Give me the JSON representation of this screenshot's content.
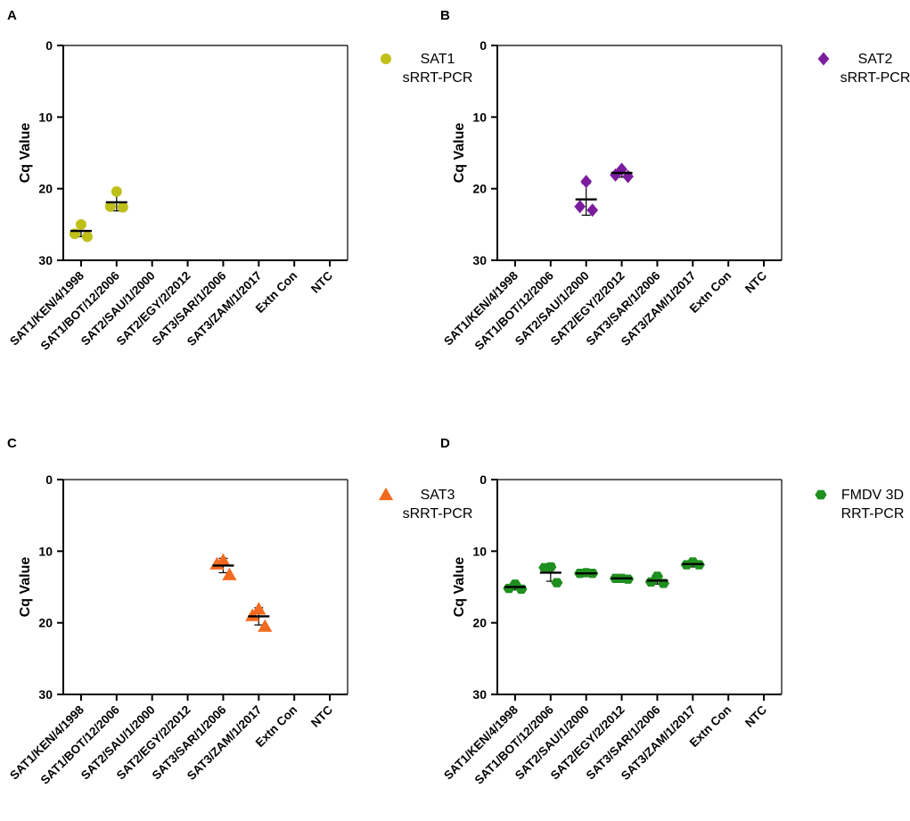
{
  "figure": {
    "ylabel": "Cq Value",
    "categories": [
      "SAT1/KEN/4/1998",
      "SAT1/BOT/12/2006",
      "SAT2/SAU/1/2000",
      "SAT2/EGY/2/2012",
      "SAT3/SAR/1/2006",
      "SAT3/ZAM/1/2017",
      "Extn Con",
      "NTC"
    ]
  },
  "chart_data": [
    {
      "type": "scatter",
      "panel": "A",
      "ylabel": "Cq Value",
      "ylim": [
        30,
        0
      ],
      "yticks": [
        0,
        10,
        20,
        30
      ],
      "categories": [
        "SAT1/KEN/4/1998",
        "SAT1/BOT/12/2006",
        "SAT2/SAU/1/2000",
        "SAT2/EGY/2/2012",
        "SAT3/SAR/1/2006",
        "SAT3/ZAM/1/2017",
        "Extn Con",
        "NTC"
      ],
      "legend": [
        "SAT1",
        "sRRT-PCR"
      ],
      "marker": "circle",
      "color": "#bfbf1a",
      "groups": [
        {
          "cat": 0,
          "points": [
            25.0,
            26.3,
            26.7
          ],
          "mean": 25.9,
          "sd_low": 25.1,
          "sd_high": 26.7
        },
        {
          "cat": 1,
          "points": [
            20.4,
            22.5,
            22.6
          ],
          "mean": 21.9,
          "sd_low": 20.7,
          "sd_high": 23.1
        }
      ]
    },
    {
      "type": "scatter",
      "panel": "B",
      "ylabel": "Cq Value",
      "ylim": [
        30,
        0
      ],
      "yticks": [
        0,
        10,
        20,
        30
      ],
      "categories": [
        "SAT1/KEN/4/1998",
        "SAT1/BOT/12/2006",
        "SAT2/SAU/1/2000",
        "SAT2/EGY/2/2012",
        "SAT3/SAR/1/2006",
        "SAT3/ZAM/1/2017",
        "Extn Con",
        "NTC"
      ],
      "legend": [
        "SAT2",
        "sRRT-PCR"
      ],
      "marker": "diamond",
      "color": "#7b1c9e",
      "groups": [
        {
          "cat": 2,
          "points": [
            19.0,
            22.5,
            23.0
          ],
          "mean": 21.5,
          "sd_low": 19.3,
          "sd_high": 23.7
        },
        {
          "cat": 3,
          "points": [
            17.3,
            18.1,
            18.3
          ],
          "mean": 17.8,
          "sd_low": 17.2,
          "sd_high": 18.4
        }
      ]
    },
    {
      "type": "scatter",
      "panel": "C",
      "ylabel": "Cq Value",
      "ylim": [
        30,
        0
      ],
      "yticks": [
        0,
        10,
        20,
        30
      ],
      "categories": [
        "SAT1/KEN/4/1998",
        "SAT1/BOT/12/2006",
        "SAT2/SAU/1/2000",
        "SAT2/EGY/2/2012",
        "SAT3/SAR/1/2006",
        "SAT3/ZAM/1/2017",
        "Extn Con",
        "NTC"
      ],
      "legend": [
        "SAT3",
        "sRRT-PCR"
      ],
      "marker": "triangle",
      "color": "#f26a1f",
      "groups": [
        {
          "cat": 4,
          "points": [
            11.3,
            11.8,
            13.3
          ],
          "mean": 12.0,
          "sd_low": 11.0,
          "sd_high": 13.0
        },
        {
          "cat": 5,
          "points": [
            18.1,
            19.0,
            20.5
          ],
          "mean": 19.1,
          "sd_low": 17.9,
          "sd_high": 20.3
        }
      ]
    },
    {
      "type": "scatter",
      "panel": "D",
      "ylabel": "Cq Value",
      "ylim": [
        30,
        0
      ],
      "yticks": [
        0,
        10,
        20,
        30
      ],
      "categories": [
        "SAT1/KEN/4/1998",
        "SAT1/BOT/12/2006",
        "SAT2/SAU/1/2000",
        "SAT2/EGY/2/2012",
        "SAT3/SAR/1/2006",
        "SAT3/ZAM/1/2017",
        "Extn Con",
        "NTC"
      ],
      "legend": [
        "FMDV 3D",
        "RRT-PCR"
      ],
      "marker": "hexagon",
      "color": "#1f8f1f",
      "groups": [
        {
          "cat": 0,
          "points": [
            14.6,
            15.2,
            15.3
          ],
          "mean": 15.0,
          "sd_low": 14.6,
          "sd_high": 15.4
        },
        {
          "cat": 1,
          "points": [
            12.2,
            12.3,
            14.4
          ],
          "mean": 13.0,
          "sd_low": 11.8,
          "sd_high": 14.2
        },
        {
          "cat": 2,
          "points": [
            13.0,
            13.1,
            13.1
          ],
          "mean": 13.1,
          "sd_low": 12.9,
          "sd_high": 13.3
        },
        {
          "cat": 3,
          "points": [
            13.8,
            13.8,
            13.9
          ],
          "mean": 13.8,
          "sd_low": 13.6,
          "sd_high": 14.0
        },
        {
          "cat": 4,
          "points": [
            13.5,
            14.3,
            14.5
          ],
          "mean": 14.1,
          "sd_low": 13.6,
          "sd_high": 14.6
        },
        {
          "cat": 5,
          "points": [
            11.5,
            11.9,
            11.9
          ],
          "mean": 11.8,
          "sd_low": 11.4,
          "sd_high": 12.2
        }
      ]
    }
  ]
}
